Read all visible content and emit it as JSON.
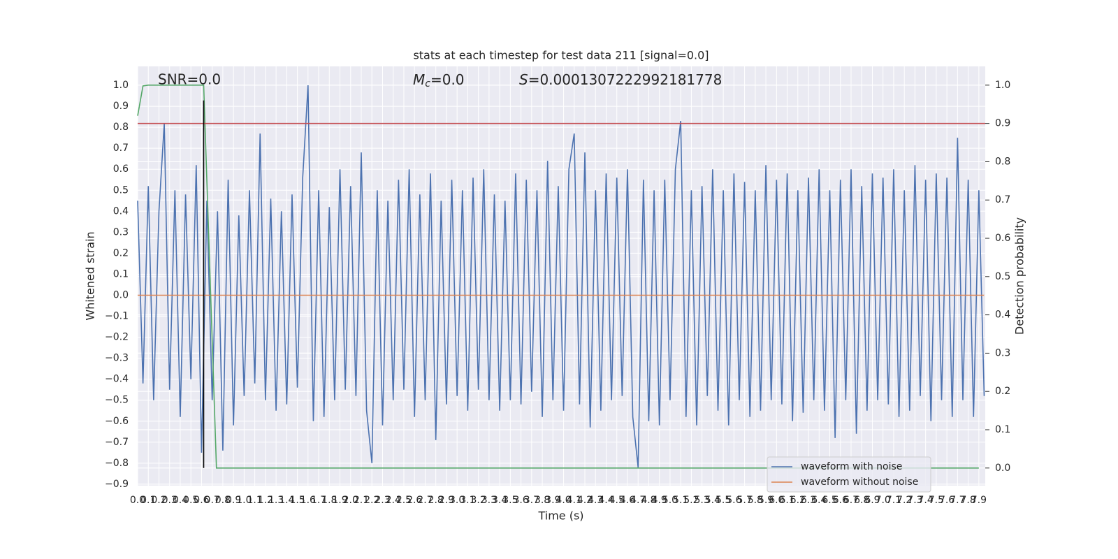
{
  "chart_data": {
    "type": "line",
    "title": "stats at each timestep for test data 211 [signal=0.0]",
    "xlabel": "Time (s)",
    "ylabel": "Whitened strain",
    "y2label": "Detection probability",
    "annotations": [
      {
        "text": "SNR=0.0"
      },
      {
        "symbol": "M",
        "subscript": "c",
        "text": "=0.0"
      },
      {
        "symbol": "S",
        "text": "=0.0001307222992181778"
      }
    ],
    "xlim": [
      0,
      7.96
    ],
    "ylim": [
      -0.907,
      1.09
    ],
    "y2lim": [
      -0.046,
      1.049
    ],
    "xticks": [
      {
        "value": 0,
        "label": "0.0"
      },
      0.1,
      0.2,
      0.3,
      0.4,
      0.5,
      0.6,
      0.7,
      0.8,
      0.9,
      {
        "value": 1,
        "label": "1.0"
      },
      1.1,
      1.2,
      1.3,
      1.4,
      1.5,
      1.6,
      1.7,
      1.8,
      1.9,
      {
        "value": 2,
        "label": "2.0"
      },
      2.1,
      2.2,
      2.3,
      2.4,
      2.5,
      2.6,
      2.7,
      2.8,
      2.9,
      {
        "value": 3,
        "label": "3.0"
      },
      3.1,
      3.2,
      3.3,
      3.4,
      3.5,
      3.6,
      3.7,
      3.8,
      3.9,
      {
        "value": 4,
        "label": "4.0"
      },
      4.1,
      4.2,
      4.3,
      4.4,
      4.5,
      4.6,
      4.7,
      4.8,
      4.9,
      {
        "value": 5,
        "label": "5.0"
      },
      5.1,
      5.2,
      5.3,
      5.4,
      5.5,
      5.6,
      5.7,
      5.8,
      5.9,
      {
        "value": 6,
        "label": "6.0"
      },
      6.1,
      6.2,
      6.3,
      6.4,
      6.5,
      6.6,
      6.7,
      6.8,
      6.9,
      {
        "value": 7,
        "label": "7.0"
      },
      7.1,
      7.2,
      7.3,
      7.4,
      7.5,
      7.6,
      7.7,
      7.8,
      7.9
    ],
    "yticks": [
      {
        "value": 1,
        "label": "1.0"
      },
      0.9,
      0.8,
      0.7,
      0.6,
      0.5,
      0.4,
      0.3,
      0.2,
      0.1,
      {
        "value": 0,
        "label": "0.0"
      },
      {
        "value": -0.1,
        "label": "−0.1"
      },
      {
        "value": -0.2,
        "label": "−0.2"
      },
      {
        "value": -0.3,
        "label": "−0.3"
      },
      {
        "value": -0.4,
        "label": "−0.4"
      },
      {
        "value": -0.5,
        "label": "−0.5"
      },
      {
        "value": -0.6,
        "label": "−0.6"
      },
      {
        "value": -0.7,
        "label": "−0.7"
      },
      {
        "value": -0.8,
        "label": "−0.8"
      },
      {
        "value": -0.9,
        "label": "−0.9"
      }
    ],
    "y2ticks": [
      {
        "value": 0,
        "label": "0.0"
      },
      0.1,
      0.2,
      0.3,
      0.4,
      0.5,
      0.6,
      0.7,
      0.8,
      0.9,
      {
        "value": 1,
        "label": "1.0"
      }
    ],
    "grid": true,
    "legend": "lower right",
    "series": [
      {
        "name": "waveform with noise",
        "color": "#4c72b0",
        "x": [
          0,
          0.05,
          0.1,
          0.15,
          0.2,
          0.25,
          0.3,
          0.35,
          0.4,
          0.45,
          0.5,
          0.55,
          0.6,
          0.65,
          0.7,
          0.75,
          0.8,
          0.85,
          0.9,
          0.95,
          1,
          1.05,
          1.1,
          1.15,
          1.2,
          1.25,
          1.3,
          1.35,
          1.4,
          1.45,
          1.5,
          1.55,
          1.6,
          1.65,
          1.7,
          1.75,
          1.8,
          1.85,
          1.9,
          1.95,
          2,
          2.05,
          2.1,
          2.15,
          2.2,
          2.25,
          2.3,
          2.35,
          2.4,
          2.45,
          2.5,
          2.55,
          2.6,
          2.65,
          2.7,
          2.75,
          2.8,
          2.85,
          2.9,
          2.95,
          3,
          3.05,
          3.1,
          3.15,
          3.2,
          3.25,
          3.3,
          3.35,
          3.4,
          3.45,
          3.5,
          3.55,
          3.6,
          3.65,
          3.7,
          3.75,
          3.8,
          3.85,
          3.9,
          3.95,
          4,
          4.05,
          4.1,
          4.15,
          4.2,
          4.25,
          4.3,
          4.35,
          4.4,
          4.45,
          4.5,
          4.55,
          4.6,
          4.65,
          4.7,
          4.75,
          4.8,
          4.85,
          4.9,
          4.95,
          5,
          5.05,
          5.1,
          5.15,
          5.2,
          5.25,
          5.3,
          5.35,
          5.4,
          5.45,
          5.5,
          5.55,
          5.6,
          5.65,
          5.7,
          5.75,
          5.8,
          5.85,
          5.9,
          5.95,
          6,
          6.05,
          6.1,
          6.15,
          6.2,
          6.25,
          6.3,
          6.35,
          6.4,
          6.45,
          6.5,
          6.55,
          6.6,
          6.65,
          6.7,
          6.75,
          6.8,
          6.85,
          6.9,
          6.95,
          7,
          7.05,
          7.1,
          7.15,
          7.2,
          7.25,
          7.3,
          7.35,
          7.4,
          7.45,
          7.5,
          7.55,
          7.6,
          7.65,
          7.7,
          7.75,
          7.8,
          7.85,
          7.9,
          7.95
        ],
        "values": [
          0.45,
          -0.42,
          0.52,
          -0.5,
          0.4,
          0.82,
          -0.45,
          0.5,
          -0.58,
          0.48,
          -0.4,
          0.62,
          -0.75,
          0.45,
          -0.5,
          0.4,
          -0.74,
          0.55,
          -0.62,
          0.38,
          -0.48,
          0.5,
          -0.42,
          0.77,
          -0.5,
          0.46,
          -0.55,
          0.4,
          -0.52,
          0.48,
          -0.44,
          0.56,
          1.0,
          -0.6,
          0.5,
          -0.58,
          0.42,
          -0.5,
          0.6,
          -0.45,
          0.52,
          -0.48,
          0.68,
          -0.55,
          -0.8,
          0.5,
          -0.62,
          0.45,
          -0.5,
          0.55,
          -0.45,
          0.6,
          -0.58,
          0.48,
          -0.5,
          0.58,
          -0.69,
          0.45,
          -0.52,
          0.55,
          -0.48,
          0.5,
          -0.55,
          0.56,
          -0.45,
          0.6,
          -0.5,
          0.48,
          -0.55,
          0.45,
          -0.5,
          0.58,
          -0.52,
          0.55,
          -0.46,
          0.5,
          -0.58,
          0.64,
          -0.5,
          0.52,
          -0.55,
          0.6,
          0.77,
          -0.52,
          0.68,
          -0.63,
          0.5,
          -0.55,
          0.58,
          -0.5,
          0.56,
          -0.48,
          0.6,
          -0.58,
          -0.82,
          0.55,
          -0.6,
          0.5,
          -0.62,
          0.55,
          -0.5,
          0.6,
          0.83,
          -0.58,
          0.5,
          -0.62,
          0.52,
          -0.48,
          0.6,
          -0.55,
          0.5,
          -0.62,
          0.58,
          -0.5,
          0.54,
          -0.58,
          0.5,
          -0.55,
          0.62,
          -0.5,
          0.55,
          -0.52,
          0.58,
          -0.6,
          0.5,
          -0.56,
          0.56,
          -0.5,
          0.6,
          -0.55,
          0.5,
          -0.68,
          0.55,
          -0.5,
          0.6,
          -0.66,
          0.52,
          -0.55,
          0.58,
          -0.5,
          0.56,
          -0.52,
          0.6,
          -0.58,
          0.5,
          -0.55,
          0.62,
          -0.48,
          0.55,
          -0.6,
          0.58,
          -0.5,
          0.56,
          -0.58,
          0.75,
          -0.5,
          0.55,
          -0.58,
          0.5,
          -0.48
        ]
      },
      {
        "name": "waveform without noise",
        "color": "#dd8452",
        "x": [
          0,
          7.95
        ],
        "values": [
          0,
          0
        ]
      },
      {
        "color": "#55a868",
        "axis": "y2",
        "x": [
          0,
          0.05,
          0.1,
          0.62,
          0.74,
          7.9
        ],
        "values": [
          0.92,
          0.998,
          1.0,
          1.0,
          0.0,
          0.0
        ]
      }
    ],
    "hlines": [
      {
        "y": 0.9,
        "axis": "y2",
        "color": "#c44e52"
      }
    ],
    "vlines": [
      {
        "x": 0.62,
        "ymin": 0,
        "ymax": 0.96,
        "axis": "y2",
        "color": "#000000"
      }
    ]
  }
}
